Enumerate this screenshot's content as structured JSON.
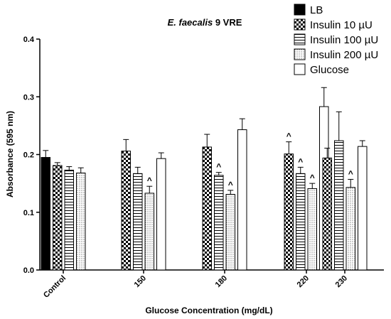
{
  "chart_data": {
    "type": "bar",
    "title_italic": "E. faecalis",
    "title_rest": " 9 VRE",
    "xlabel": "Glucose Concentration (mg/dL)",
    "ylabel": "Absorbance (595 nm)",
    "ylim": [
      0,
      0.4
    ],
    "yticks": [
      0.0,
      0.1,
      0.2,
      0.3,
      0.4
    ],
    "ytick_labels": [
      "0.0",
      "0.1",
      "0.2",
      "0.3",
      "0.4"
    ],
    "categories": [
      "Control",
      "150",
      "180",
      "220",
      "230"
    ],
    "legend_position": "top-right",
    "series": [
      {
        "name": "LB",
        "pattern": "solid",
        "values": [
          0.195,
          null,
          null,
          null,
          null
        ],
        "errors": [
          0.012,
          null,
          null,
          null,
          null
        ],
        "marks": [
          "",
          "",
          "",
          "",
          ""
        ]
      },
      {
        "name": "Insulin 10 µU",
        "pattern": "checker",
        "values": [
          0.181,
          0.206,
          0.213,
          0.201,
          0.194
        ],
        "errors": [
          0.005,
          0.02,
          0.022,
          0.021,
          0.017
        ],
        "marks": [
          "",
          "",
          "",
          "^",
          ""
        ]
      },
      {
        "name": "Insulin 100 µU",
        "pattern": "hlines",
        "values": [
          0.173,
          0.167,
          0.164,
          0.167,
          0.224
        ],
        "errors": [
          0.006,
          0.011,
          0.005,
          0.011,
          0.05
        ],
        "marks": [
          "",
          "",
          "^",
          "^",
          ""
        ]
      },
      {
        "name": "Insulin 200 µU",
        "pattern": "dots",
        "values": [
          0.168,
          0.133,
          0.131,
          0.141,
          0.143
        ],
        "errors": [
          0.009,
          0.012,
          0.007,
          0.009,
          0.014
        ],
        "marks": [
          "",
          "^",
          "^",
          "^",
          "^"
        ]
      },
      {
        "name": "Glucose",
        "pattern": "white",
        "values": [
          null,
          0.193,
          0.243,
          0.283,
          0.214
        ],
        "errors": [
          null,
          0.01,
          0.019,
          0.033,
          0.01
        ],
        "marks": [
          "",
          "",
          "",
          "",
          ""
        ]
      }
    ]
  }
}
